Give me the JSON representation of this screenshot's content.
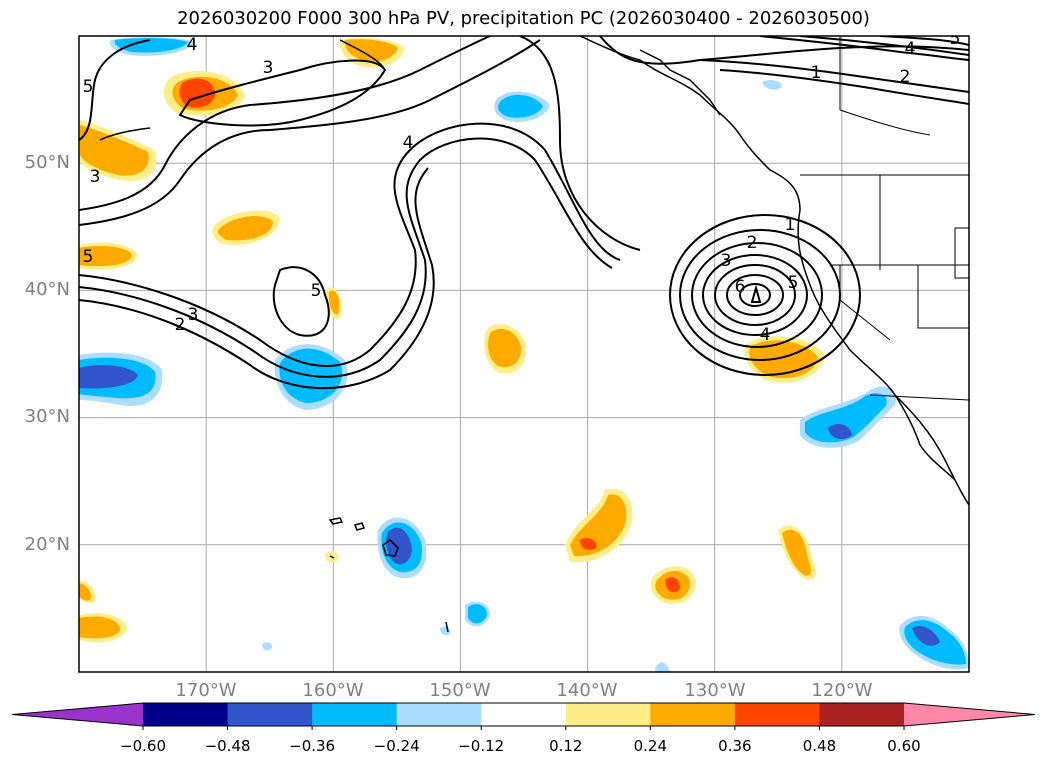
{
  "title": "2026030200 F000 300 hPa PV, precipitation PC (2026030400 - 2026030500)",
  "map": {
    "lon_range": [
      -180,
      -110
    ],
    "lat_range": [
      10,
      60
    ],
    "lat_labels": [
      {
        "lat": 50,
        "text": "50°N"
      },
      {
        "lat": 40,
        "text": "40°N"
      },
      {
        "lat": 30,
        "text": "30°N"
      },
      {
        "lat": 20,
        "text": "20°N"
      }
    ],
    "lon_labels": [
      {
        "lon": -170,
        "text": "170°W"
      },
      {
        "lon": -160,
        "text": "160°W"
      },
      {
        "lon": -150,
        "text": "150°W"
      },
      {
        "lon": -140,
        "text": "140°W"
      },
      {
        "lon": -130,
        "text": "130°W"
      },
      {
        "lon": -120,
        "text": "120°W"
      }
    ],
    "contour_labels": [
      "1",
      "2",
      "3",
      "4",
      "5",
      "6"
    ]
  },
  "colorbar": {
    "ticks": [
      "−0.60",
      "−0.48",
      "−0.36",
      "−0.24",
      "−0.12",
      "0.12",
      "0.24",
      "0.36",
      "0.48",
      "0.60"
    ],
    "under_color": "#9933cc",
    "over_color": "#ff88aa",
    "colors": [
      "#000088",
      "#3355cc",
      "#00bbff",
      "#aaddff",
      "#ffffff",
      "#ffee88",
      "#ffaa00",
      "#ff4400",
      "#aa2222"
    ]
  }
}
